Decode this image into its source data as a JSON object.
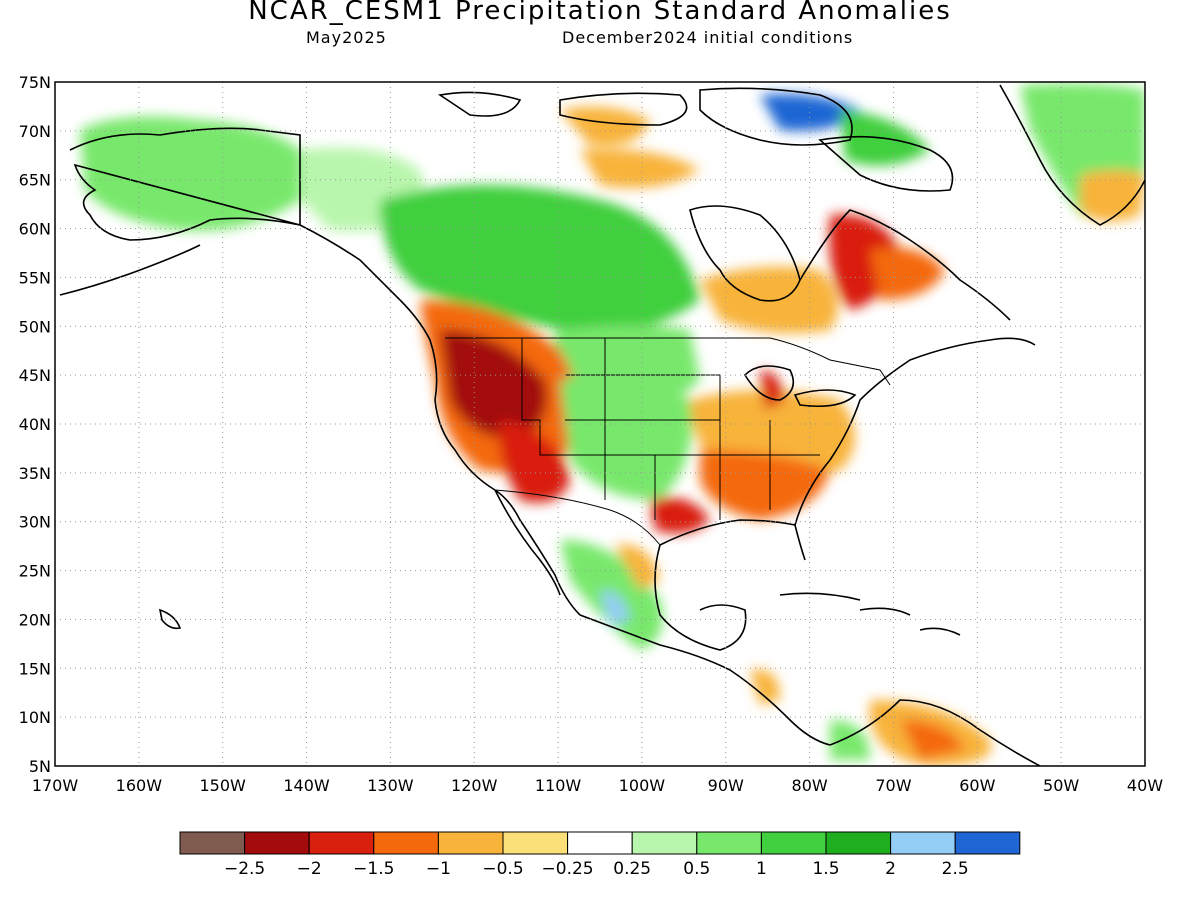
{
  "title": "NCAR_CESM1 Precipitation Standard Anomalies",
  "subtitle_left": "May2025",
  "subtitle_right": "December2024 initial conditions",
  "lat_labels": [
    "75N",
    "70N",
    "65N",
    "60N",
    "55N",
    "50N",
    "45N",
    "40N",
    "35N",
    "30N",
    "25N",
    "20N",
    "15N",
    "10N",
    "5N"
  ],
  "lon_labels": [
    "170W",
    "160W",
    "150W",
    "140W",
    "130W",
    "120W",
    "110W",
    "100W",
    "90W",
    "80W",
    "70W",
    "60W",
    "50W",
    "40W"
  ],
  "colorbar": {
    "colors": [
      "#7f5a4f",
      "#a30c0c",
      "#d91f0d",
      "#f4690c",
      "#f8b33a",
      "#fbe07a",
      "#ffffff",
      "#b9f6ad",
      "#78e86c",
      "#40cf3e",
      "#1fae1f",
      "#94cdf5",
      "#1f66d4"
    ],
    "labels": [
      "−2.5",
      "−2",
      "−1.5",
      "−1",
      "−0.5",
      "−0.25",
      "0.25",
      "0.5",
      "1",
      "1.5",
      "2",
      "2.5"
    ]
  },
  "colors": {
    "strong_dry": "#a30c0c",
    "dry": "#f4690c",
    "wet": "#40cf3e",
    "strong_wet": "#1f66d4"
  }
}
